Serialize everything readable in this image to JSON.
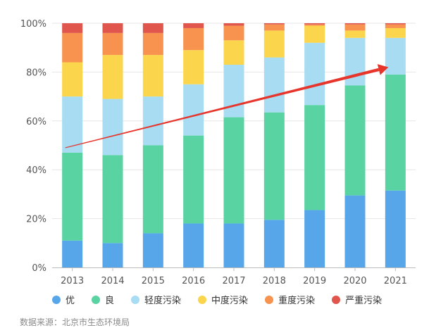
{
  "chart_data": {
    "type": "bar",
    "stacked": true,
    "percent": true,
    "categories": [
      "2013",
      "2014",
      "2015",
      "2016",
      "2017",
      "2018",
      "2019",
      "2020",
      "2021"
    ],
    "series": [
      {
        "name": "优",
        "color": "#58a6ea",
        "values": [
          11,
          10,
          14,
          18,
          18,
          19.5,
          23.5,
          29.5,
          31.5
        ]
      },
      {
        "name": "良",
        "color": "#59d3a1",
        "values": [
          36,
          36,
          36,
          36,
          43.5,
          44,
          43,
          45,
          47.5
        ]
      },
      {
        "name": "轻度污染",
        "color": "#a7dcf3",
        "values": [
          23,
          23,
          20,
          21,
          21.5,
          22.5,
          25.5,
          19.5,
          15
        ]
      },
      {
        "name": "中度污染",
        "color": "#fbd54b",
        "values": [
          14,
          18,
          17,
          14,
          10,
          11,
          7,
          3,
          4
        ]
      },
      {
        "name": "重度污染",
        "color": "#f7934f",
        "values": [
          12,
          9,
          9,
          9,
          6,
          2.5,
          0.5,
          2.5,
          1.5
        ]
      },
      {
        "name": "严重污染",
        "color": "#e0564d",
        "values": [
          4,
          4,
          4,
          2,
          1,
          0.5,
          0.5,
          0.5,
          0.5
        ]
      }
    ],
    "yticks": [
      "0%",
      "20%",
      "40%",
      "60%",
      "80%",
      "100%"
    ],
    "ylim": [
      0,
      100
    ],
    "legend_position": "bottom",
    "annotation": {
      "type": "arrow",
      "color": "#e8352b",
      "from": {
        "x": "2013",
        "y": 49
      },
      "to": {
        "x": "2021",
        "y": 82
      }
    }
  },
  "source_text": "数据来源：北京市生态环境局"
}
